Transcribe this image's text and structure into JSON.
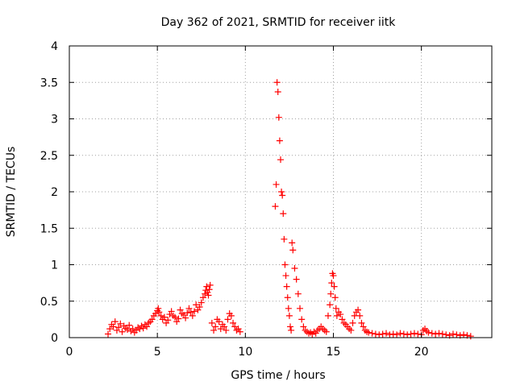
{
  "chart_data": {
    "type": "scatter",
    "title": "Day 362 of 2021, SRMTID for receiver iitk",
    "xlabel": "GPS time / hours",
    "ylabel": "SRMTID / TECUs",
    "xlim": [
      0,
      24
    ],
    "ylim": [
      0,
      4
    ],
    "xticks": [
      {
        "value": 0,
        "label": "0"
      },
      {
        "value": 5,
        "label": "5"
      },
      {
        "value": 10,
        "label": "10"
      },
      {
        "value": 15,
        "label": "15"
      },
      {
        "value": 20,
        "label": "20"
      }
    ],
    "yticks": [
      {
        "value": 0,
        "label": "0"
      },
      {
        "value": 0.5,
        "label": "0.5"
      },
      {
        "value": 1,
        "label": "1"
      },
      {
        "value": 1.5,
        "label": "1.5"
      },
      {
        "value": 2,
        "label": "2"
      },
      {
        "value": 2.5,
        "label": "2.5"
      },
      {
        "value": 3,
        "label": "3"
      },
      {
        "value": 3.5,
        "label": "3.5"
      },
      {
        "value": 4,
        "label": "4"
      }
    ],
    "grid": true,
    "marker": "+",
    "marker_color": "#ff0000",
    "series": [
      {
        "name": "SRMTID",
        "x": [
          2.2,
          2.3,
          2.4,
          2.5,
          2.6,
          2.7,
          2.8,
          2.9,
          3.0,
          3.1,
          3.2,
          3.3,
          3.4,
          3.5,
          3.6,
          3.7,
          3.8,
          3.9,
          4.0,
          4.1,
          4.2,
          4.3,
          4.4,
          4.5,
          4.6,
          4.7,
          4.8,
          4.9,
          5.0,
          5.05,
          5.1,
          5.2,
          5.3,
          5.4,
          5.5,
          5.6,
          5.7,
          5.8,
          5.9,
          6.0,
          6.1,
          6.2,
          6.3,
          6.4,
          6.5,
          6.6,
          6.7,
          6.8,
          6.9,
          7.0,
          7.1,
          7.2,
          7.3,
          7.4,
          7.5,
          7.6,
          7.7,
          7.75,
          7.8,
          7.85,
          7.9,
          7.95,
          8.0,
          8.1,
          8.2,
          8.3,
          8.4,
          8.5,
          8.6,
          8.7,
          8.8,
          8.9,
          9.0,
          9.1,
          9.2,
          9.3,
          9.4,
          9.5,
          9.6,
          9.7,
          11.7,
          11.75,
          11.8,
          11.85,
          11.9,
          11.95,
          12.0,
          12.05,
          12.1,
          12.15,
          12.2,
          12.25,
          12.3,
          12.35,
          12.4,
          12.45,
          12.5,
          12.55,
          12.6,
          12.65,
          12.7,
          12.8,
          12.9,
          13.0,
          13.1,
          13.2,
          13.3,
          13.4,
          13.5,
          13.6,
          13.7,
          13.8,
          13.9,
          14.0,
          14.1,
          14.2,
          14.3,
          14.4,
          14.5,
          14.6,
          14.7,
          14.8,
          14.85,
          14.9,
          14.95,
          15.0,
          15.05,
          15.1,
          15.15,
          15.2,
          15.3,
          15.4,
          15.5,
          15.6,
          15.7,
          15.8,
          15.9,
          16.0,
          16.1,
          16.2,
          16.3,
          16.4,
          16.5,
          16.6,
          16.7,
          16.8,
          16.9,
          17.0,
          17.2,
          17.4,
          17.6,
          17.8,
          18.0,
          18.2,
          18.4,
          18.6,
          18.8,
          19.0,
          19.2,
          19.4,
          19.6,
          19.8,
          20.0,
          20.1,
          20.2,
          20.3,
          20.4,
          20.6,
          20.8,
          21.0,
          21.2,
          21.4,
          21.6,
          21.8,
          22.0,
          22.2,
          22.4,
          22.6,
          22.8
        ],
        "y": [
          0.05,
          0.12,
          0.18,
          0.15,
          0.22,
          0.1,
          0.14,
          0.19,
          0.08,
          0.16,
          0.13,
          0.11,
          0.17,
          0.09,
          0.12,
          0.07,
          0.1,
          0.14,
          0.12,
          0.16,
          0.13,
          0.18,
          0.15,
          0.2,
          0.22,
          0.25,
          0.3,
          0.33,
          0.37,
          0.4,
          0.35,
          0.3,
          0.25,
          0.28,
          0.2,
          0.24,
          0.32,
          0.36,
          0.3,
          0.28,
          0.22,
          0.26,
          0.38,
          0.33,
          0.31,
          0.27,
          0.34,
          0.4,
          0.35,
          0.3,
          0.36,
          0.45,
          0.38,
          0.42,
          0.48,
          0.55,
          0.6,
          0.65,
          0.7,
          0.62,
          0.58,
          0.66,
          0.72,
          0.2,
          0.1,
          0.15,
          0.25,
          0.22,
          0.12,
          0.18,
          0.15,
          0.1,
          0.25,
          0.33,
          0.3,
          0.2,
          0.15,
          0.1,
          0.12,
          0.08,
          1.8,
          2.1,
          3.5,
          3.37,
          3.02,
          2.7,
          2.44,
          2.0,
          1.95,
          1.7,
          1.35,
          1.0,
          0.85,
          0.7,
          0.55,
          0.4,
          0.3,
          0.15,
          0.1,
          1.3,
          1.2,
          0.95,
          0.8,
          0.6,
          0.4,
          0.25,
          0.15,
          0.1,
          0.08,
          0.06,
          0.07,
          0.05,
          0.08,
          0.06,
          0.1,
          0.12,
          0.15,
          0.12,
          0.1,
          0.08,
          0.3,
          0.45,
          0.6,
          0.75,
          0.88,
          0.85,
          0.7,
          0.55,
          0.4,
          0.3,
          0.35,
          0.32,
          0.25,
          0.2,
          0.18,
          0.15,
          0.12,
          0.1,
          0.2,
          0.3,
          0.35,
          0.38,
          0.3,
          0.2,
          0.15,
          0.1,
          0.08,
          0.07,
          0.06,
          0.05,
          0.04,
          0.05,
          0.06,
          0.04,
          0.05,
          0.04,
          0.06,
          0.05,
          0.04,
          0.05,
          0.06,
          0.05,
          0.04,
          0.1,
          0.12,
          0.09,
          0.07,
          0.06,
          0.05,
          0.06,
          0.05,
          0.04,
          0.03,
          0.05,
          0.04,
          0.03,
          0.04,
          0.03,
          0.02
        ]
      }
    ]
  }
}
